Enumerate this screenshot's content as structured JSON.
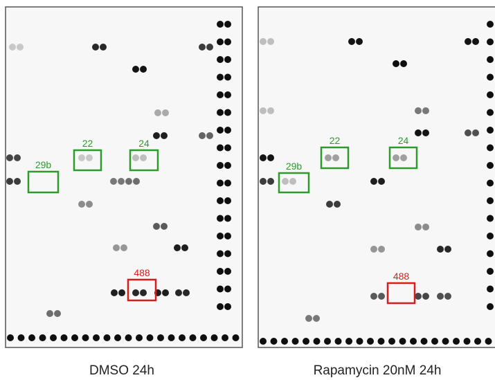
{
  "panels": [
    {
      "caption": "DMSO 24h",
      "boxes": [
        {
          "label": "29b",
          "color": "#2e9a2e"
        },
        {
          "label": "22",
          "color": "#2e9a2e"
        },
        {
          "label": "24",
          "color": "#2e9a2e"
        },
        {
          "label": "488",
          "color": "#d81b1b"
        }
      ]
    },
    {
      "caption": "Rapamycin 20nM 24h",
      "boxes": [
        {
          "label": "29b",
          "color": "#2e9a2e"
        },
        {
          "label": "22",
          "color": "#2e9a2e"
        },
        {
          "label": "24",
          "color": "#2e9a2e"
        },
        {
          "label": "488",
          "color": "#d81b1b"
        }
      ]
    }
  ]
}
